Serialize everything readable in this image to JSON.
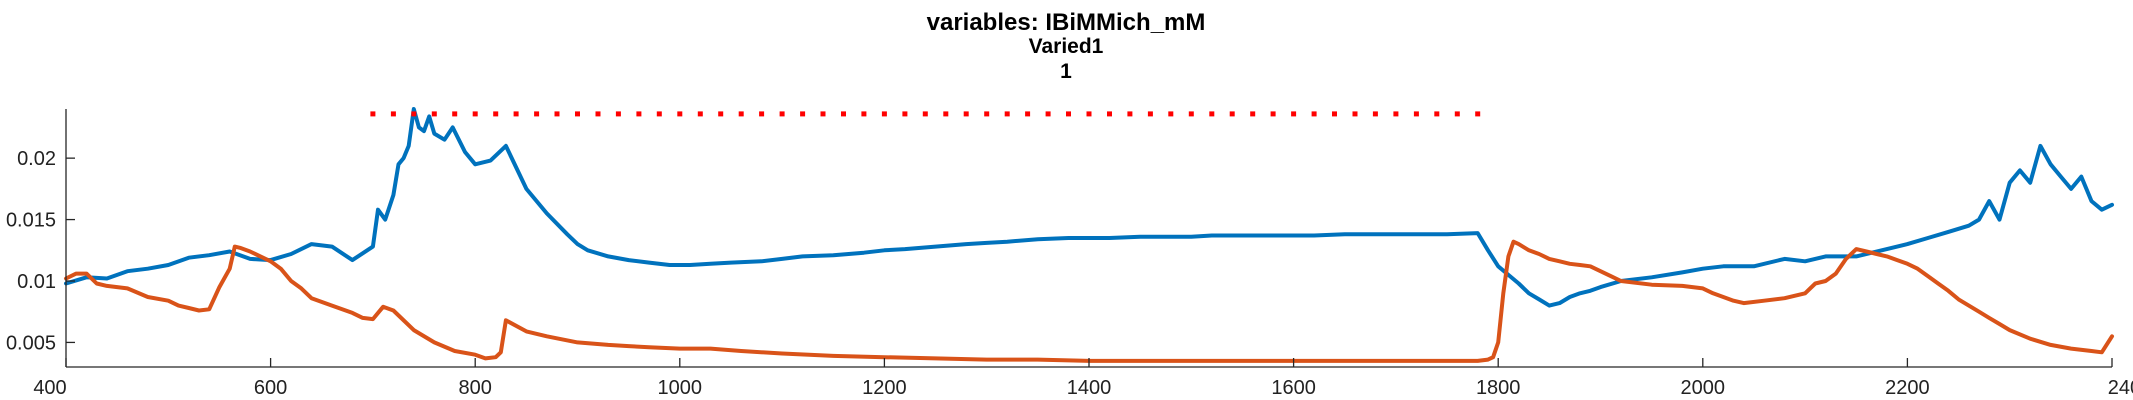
{
  "chart_data": {
    "type": "line",
    "title": [
      "variables: IBiMMich_mM",
      "Varied1",
      "1"
    ],
    "xlabel": "",
    "ylabel": "",
    "xlim": [
      400,
      2400
    ],
    "ylim": [
      0.003,
      0.024
    ],
    "grid": false,
    "x_ticks": [
      400,
      600,
      800,
      1000,
      1200,
      1400,
      1600,
      1800,
      2000,
      2200,
      2400
    ],
    "x_tick_labels": [
      "400",
      "600",
      "800",
      "1000",
      "1200",
      "1400",
      "1600",
      "1800",
      "2000",
      "2200",
      "2400"
    ],
    "y_ticks": [
      0.005,
      0.01,
      0.015,
      0.02
    ],
    "y_tick_labels": [
      "0.005",
      "0.01",
      "0.015",
      "0.02"
    ],
    "colors": {
      "blue": "#0072BD",
      "orange": "#D95319",
      "red_marker": "#FF0000"
    },
    "series": [
      {
        "color": "#0072BD",
        "x": [
          400,
          420,
          440,
          460,
          480,
          500,
          520,
          540,
          560,
          580,
          600,
          620,
          640,
          660,
          680,
          700,
          705,
          712,
          720,
          725,
          730,
          735,
          740,
          745,
          750,
          755,
          760,
          770,
          778,
          790,
          800,
          815,
          830,
          850,
          870,
          890,
          900,
          910,
          930,
          950,
          970,
          990,
          1010,
          1030,
          1050,
          1080,
          1100,
          1120,
          1150,
          1180,
          1200,
          1220,
          1250,
          1280,
          1300,
          1320,
          1350,
          1380,
          1400,
          1420,
          1450,
          1480,
          1500,
          1520,
          1550,
          1580,
          1600,
          1620,
          1650,
          1680,
          1700,
          1720,
          1750,
          1780,
          1790,
          1800,
          1810,
          1820,
          1830,
          1840,
          1850,
          1860,
          1870,
          1880,
          1890,
          1900,
          1920,
          1950,
          1980,
          2000,
          2020,
          2050,
          2080,
          2100,
          2120,
          2150,
          2180,
          2200,
          2220,
          2240,
          2260,
          2270,
          2280,
          2290,
          2300,
          2310,
          2320,
          2330,
          2340,
          2350,
          2360,
          2370,
          2380,
          2390,
          2400
        ],
        "y": [
          0.0098,
          0.0103,
          0.0102,
          0.0108,
          0.011,
          0.0113,
          0.0119,
          0.0121,
          0.0124,
          0.0118,
          0.0117,
          0.0122,
          0.013,
          0.0128,
          0.0117,
          0.0128,
          0.0158,
          0.015,
          0.017,
          0.0195,
          0.02,
          0.021,
          0.024,
          0.0225,
          0.0222,
          0.0234,
          0.022,
          0.0215,
          0.0225,
          0.0205,
          0.0195,
          0.0198,
          0.021,
          0.0175,
          0.0155,
          0.0138,
          0.013,
          0.0125,
          0.012,
          0.0117,
          0.0115,
          0.0113,
          0.0113,
          0.0114,
          0.0115,
          0.0116,
          0.0118,
          0.012,
          0.0121,
          0.0123,
          0.0125,
          0.0126,
          0.0128,
          0.013,
          0.0131,
          0.0132,
          0.0134,
          0.0135,
          0.0135,
          0.0135,
          0.0136,
          0.0136,
          0.0136,
          0.0137,
          0.0137,
          0.0137,
          0.0137,
          0.0137,
          0.0138,
          0.0138,
          0.0138,
          0.0138,
          0.0138,
          0.0139,
          0.0125,
          0.0112,
          0.0105,
          0.0098,
          0.009,
          0.0085,
          0.008,
          0.0082,
          0.0087,
          0.009,
          0.0092,
          0.0095,
          0.01,
          0.0103,
          0.0107,
          0.011,
          0.0112,
          0.0112,
          0.0118,
          0.0116,
          0.012,
          0.012,
          0.0126,
          0.013,
          0.0135,
          0.014,
          0.0145,
          0.015,
          0.0165,
          0.015,
          0.018,
          0.019,
          0.018,
          0.021,
          0.0195,
          0.0185,
          0.0175,
          0.0185,
          0.0165,
          0.0158,
          0.0162
        ]
      },
      {
        "color": "#D95319",
        "x": [
          400,
          410,
          420,
          430,
          440,
          460,
          480,
          500,
          510,
          520,
          530,
          540,
          550,
          560,
          565,
          570,
          580,
          600,
          610,
          620,
          630,
          640,
          660,
          680,
          690,
          700,
          710,
          720,
          740,
          760,
          780,
          800,
          810,
          820,
          825,
          830,
          850,
          870,
          900,
          930,
          950,
          970,
          1000,
          1030,
          1060,
          1100,
          1150,
          1200,
          1250,
          1300,
          1350,
          1400,
          1450,
          1500,
          1550,
          1600,
          1650,
          1700,
          1750,
          1780,
          1790,
          1795,
          1800,
          1805,
          1810,
          1815,
          1820,
          1830,
          1840,
          1850,
          1860,
          1870,
          1880,
          1890,
          1900,
          1910,
          1920,
          1950,
          1980,
          2000,
          2010,
          2020,
          2030,
          2040,
          2060,
          2080,
          2100,
          2110,
          2120,
          2130,
          2140,
          2150,
          2160,
          2170,
          2180,
          2190,
          2200,
          2210,
          2220,
          2230,
          2240,
          2250,
          2260,
          2270,
          2280,
          2290,
          2300,
          2320,
          2340,
          2360,
          2380,
          2390,
          2400
        ],
        "y": [
          0.0102,
          0.0106,
          0.0106,
          0.0098,
          0.0096,
          0.0094,
          0.0087,
          0.0084,
          0.008,
          0.0078,
          0.0076,
          0.0077,
          0.0095,
          0.011,
          0.0128,
          0.0127,
          0.0124,
          0.0116,
          0.011,
          0.01,
          0.0094,
          0.0086,
          0.008,
          0.0074,
          0.007,
          0.0069,
          0.0079,
          0.0076,
          0.006,
          0.005,
          0.0043,
          0.004,
          0.0037,
          0.0038,
          0.0042,
          0.0068,
          0.0059,
          0.0055,
          0.005,
          0.0048,
          0.0047,
          0.0046,
          0.0045,
          0.0045,
          0.0043,
          0.0041,
          0.0039,
          0.0038,
          0.0037,
          0.0036,
          0.0036,
          0.0035,
          0.0035,
          0.0035,
          0.0035,
          0.0035,
          0.0035,
          0.0035,
          0.0035,
          0.0035,
          0.0036,
          0.0038,
          0.005,
          0.009,
          0.012,
          0.0132,
          0.013,
          0.0125,
          0.0122,
          0.0118,
          0.0116,
          0.0114,
          0.0113,
          0.0112,
          0.0108,
          0.0104,
          0.01,
          0.0097,
          0.0096,
          0.0094,
          0.009,
          0.0087,
          0.0084,
          0.0082,
          0.0084,
          0.0086,
          0.009,
          0.0098,
          0.01,
          0.0106,
          0.0118,
          0.0126,
          0.0124,
          0.0122,
          0.012,
          0.0117,
          0.0114,
          0.011,
          0.0104,
          0.0098,
          0.0092,
          0.0085,
          0.008,
          0.0075,
          0.007,
          0.0065,
          0.006,
          0.0053,
          0.0048,
          0.0045,
          0.0043,
          0.0042,
          0.0055
        ]
      }
    ],
    "marker_series": {
      "color": "#FF0000",
      "marker": "square",
      "x_start": 700,
      "x_end": 1780,
      "x_step": 20,
      "y": 0.0236
    }
  }
}
